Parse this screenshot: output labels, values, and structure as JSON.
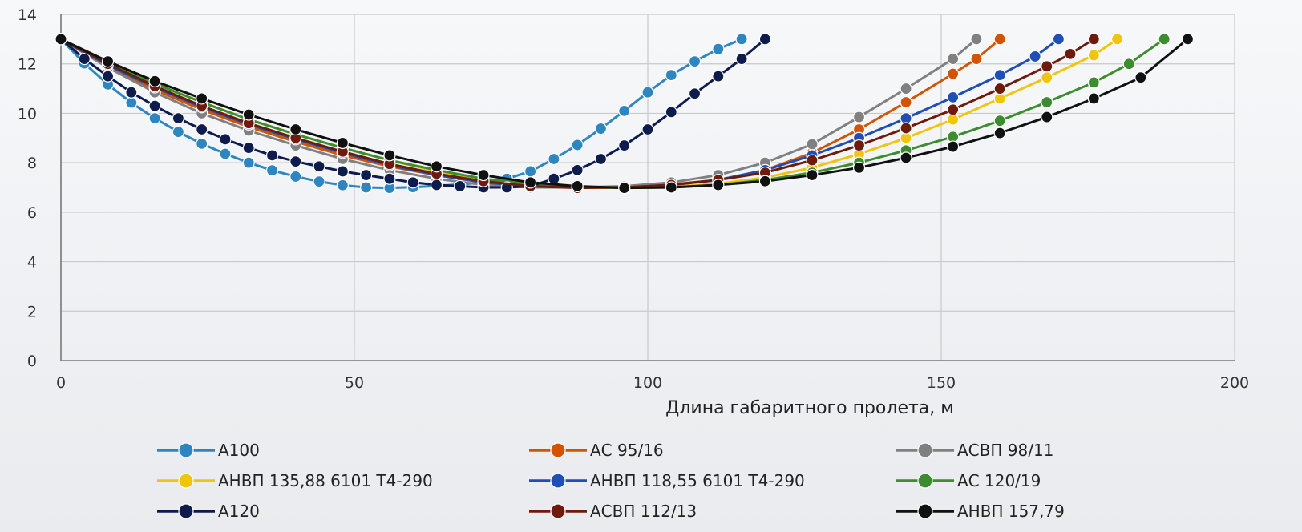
{
  "chart_data": {
    "type": "line",
    "title": "",
    "xlabel": "Длина габаритного пролета, м",
    "ylabel": "",
    "xlim": [
      0,
      200
    ],
    "ylim": [
      0,
      14
    ],
    "xticks": [
      0,
      50,
      100,
      150,
      200
    ],
    "yticks": [
      0,
      2,
      4,
      6,
      8,
      10,
      12,
      14
    ],
    "grid": true,
    "legend": "bottom",
    "series": [
      {
        "name": "А100",
        "color": "#2e86c1",
        "x": [
          0,
          4,
          8,
          12,
          16,
          20,
          24,
          28,
          32,
          36,
          40,
          44,
          48,
          52,
          56,
          60,
          64,
          68,
          72,
          76,
          80,
          84,
          88,
          92,
          96,
          100,
          104,
          108,
          112,
          116
        ],
        "y": [
          13,
          12.02,
          11.17,
          10.43,
          9.8,
          9.25,
          8.77,
          8.36,
          8.0,
          7.69,
          7.44,
          7.24,
          7.09,
          7.0,
          6.98,
          7.01,
          7.06,
          7.12,
          7.2,
          7.35,
          7.65,
          8.15,
          8.72,
          9.38,
          10.1,
          10.85,
          11.55,
          12.1,
          12.6,
          13
        ]
      },
      {
        "name": "АС 95/16",
        "color": "#d35400",
        "x": [
          0,
          8,
          16,
          24,
          32,
          40,
          48,
          56,
          64,
          72,
          80,
          88,
          96,
          104,
          112,
          120,
          128,
          136,
          144,
          152,
          156,
          160
        ],
        "y": [
          13,
          11.9,
          10.95,
          10.15,
          9.45,
          8.85,
          8.3,
          7.85,
          7.5,
          7.2,
          7.05,
          7.0,
          7.02,
          7.12,
          7.3,
          7.7,
          8.4,
          9.35,
          10.45,
          11.6,
          12.2,
          13
        ]
      },
      {
        "name": "АСВП 98/11",
        "color": "#808080",
        "x": [
          0,
          8,
          16,
          24,
          32,
          40,
          48,
          56,
          64,
          72,
          80,
          88,
          96,
          104,
          112,
          120,
          128,
          136,
          144,
          152,
          156
        ],
        "y": [
          13,
          11.85,
          10.85,
          10.0,
          9.3,
          8.7,
          8.15,
          7.7,
          7.35,
          7.1,
          7.0,
          7.0,
          7.05,
          7.2,
          7.5,
          8.0,
          8.75,
          9.85,
          11.0,
          12.2,
          13
        ]
      },
      {
        "name": "АНВП 135,88 6101 Т4-290",
        "color": "#f1c40f",
        "x": [
          0,
          8,
          16,
          24,
          32,
          40,
          48,
          56,
          64,
          72,
          80,
          88,
          96,
          104,
          112,
          120,
          128,
          136,
          144,
          152,
          160,
          168,
          176,
          180
        ],
        "y": [
          13,
          12.05,
          11.2,
          10.45,
          9.75,
          9.15,
          8.6,
          8.1,
          7.65,
          7.3,
          7.1,
          7.0,
          6.98,
          7.02,
          7.15,
          7.4,
          7.8,
          8.35,
          9.0,
          9.75,
          10.6,
          11.45,
          12.35,
          13
        ]
      },
      {
        "name": "АНВП 118,55 6101 Т4-290",
        "color": "#1f4fb4",
        "x": [
          0,
          8,
          16,
          24,
          32,
          40,
          48,
          56,
          64,
          72,
          80,
          88,
          96,
          104,
          112,
          120,
          128,
          136,
          144,
          152,
          160,
          166,
          170
        ],
        "y": [
          13,
          11.95,
          11.05,
          10.25,
          9.55,
          8.95,
          8.4,
          7.9,
          7.5,
          7.2,
          7.05,
          7.0,
          7.0,
          7.1,
          7.3,
          7.7,
          8.3,
          9.0,
          9.8,
          10.65,
          11.55,
          12.3,
          13
        ]
      },
      {
        "name": "АС 120/19",
        "color": "#3c8d2f",
        "x": [
          0,
          8,
          16,
          24,
          32,
          40,
          48,
          56,
          64,
          72,
          80,
          88,
          96,
          104,
          112,
          120,
          128,
          136,
          144,
          152,
          160,
          168,
          176,
          182,
          188
        ],
        "y": [
          13,
          12.05,
          11.2,
          10.45,
          9.75,
          9.15,
          8.6,
          8.1,
          7.7,
          7.35,
          7.15,
          7.02,
          6.98,
          7.0,
          7.1,
          7.3,
          7.6,
          8.0,
          8.5,
          9.05,
          9.7,
          10.45,
          11.25,
          12.0,
          13
        ]
      },
      {
        "name": "А120",
        "color": "#0d1b4d",
        "x": [
          0,
          4,
          8,
          12,
          16,
          20,
          24,
          28,
          32,
          36,
          40,
          44,
          48,
          52,
          56,
          60,
          64,
          68,
          72,
          76,
          80,
          84,
          88,
          92,
          96,
          100,
          104,
          108,
          112,
          116,
          120
        ],
        "y": [
          13,
          12.2,
          11.5,
          10.85,
          10.3,
          9.8,
          9.35,
          8.95,
          8.6,
          8.3,
          8.05,
          7.85,
          7.65,
          7.5,
          7.35,
          7.2,
          7.1,
          7.05,
          7.0,
          7.0,
          7.05,
          7.35,
          7.7,
          8.15,
          8.7,
          9.35,
          10.05,
          10.8,
          11.5,
          12.2,
          13
        ]
      },
      {
        "name": "АСВП 112/13",
        "color": "#6e1a0c",
        "x": [
          0,
          8,
          16,
          24,
          32,
          40,
          48,
          56,
          64,
          72,
          80,
          88,
          96,
          104,
          112,
          120,
          128,
          136,
          144,
          152,
          160,
          168,
          172,
          176
        ],
        "y": [
          13,
          12.0,
          11.1,
          10.3,
          9.6,
          9.0,
          8.45,
          7.95,
          7.55,
          7.25,
          7.05,
          6.98,
          7.0,
          7.1,
          7.3,
          7.6,
          8.1,
          8.7,
          9.4,
          10.15,
          11.0,
          11.9,
          12.4,
          13
        ]
      },
      {
        "name": "АНВП 157,79",
        "color": "#111111",
        "x": [
          0,
          8,
          16,
          24,
          32,
          40,
          48,
          56,
          64,
          72,
          80,
          88,
          96,
          104,
          112,
          120,
          128,
          136,
          144,
          152,
          160,
          168,
          176,
          184,
          192
        ],
        "y": [
          13,
          12.1,
          11.3,
          10.6,
          9.95,
          9.35,
          8.8,
          8.3,
          7.85,
          7.5,
          7.2,
          7.05,
          6.98,
          7.0,
          7.1,
          7.25,
          7.5,
          7.8,
          8.2,
          8.65,
          9.2,
          9.85,
          10.6,
          11.45,
          13
        ]
      }
    ]
  }
}
